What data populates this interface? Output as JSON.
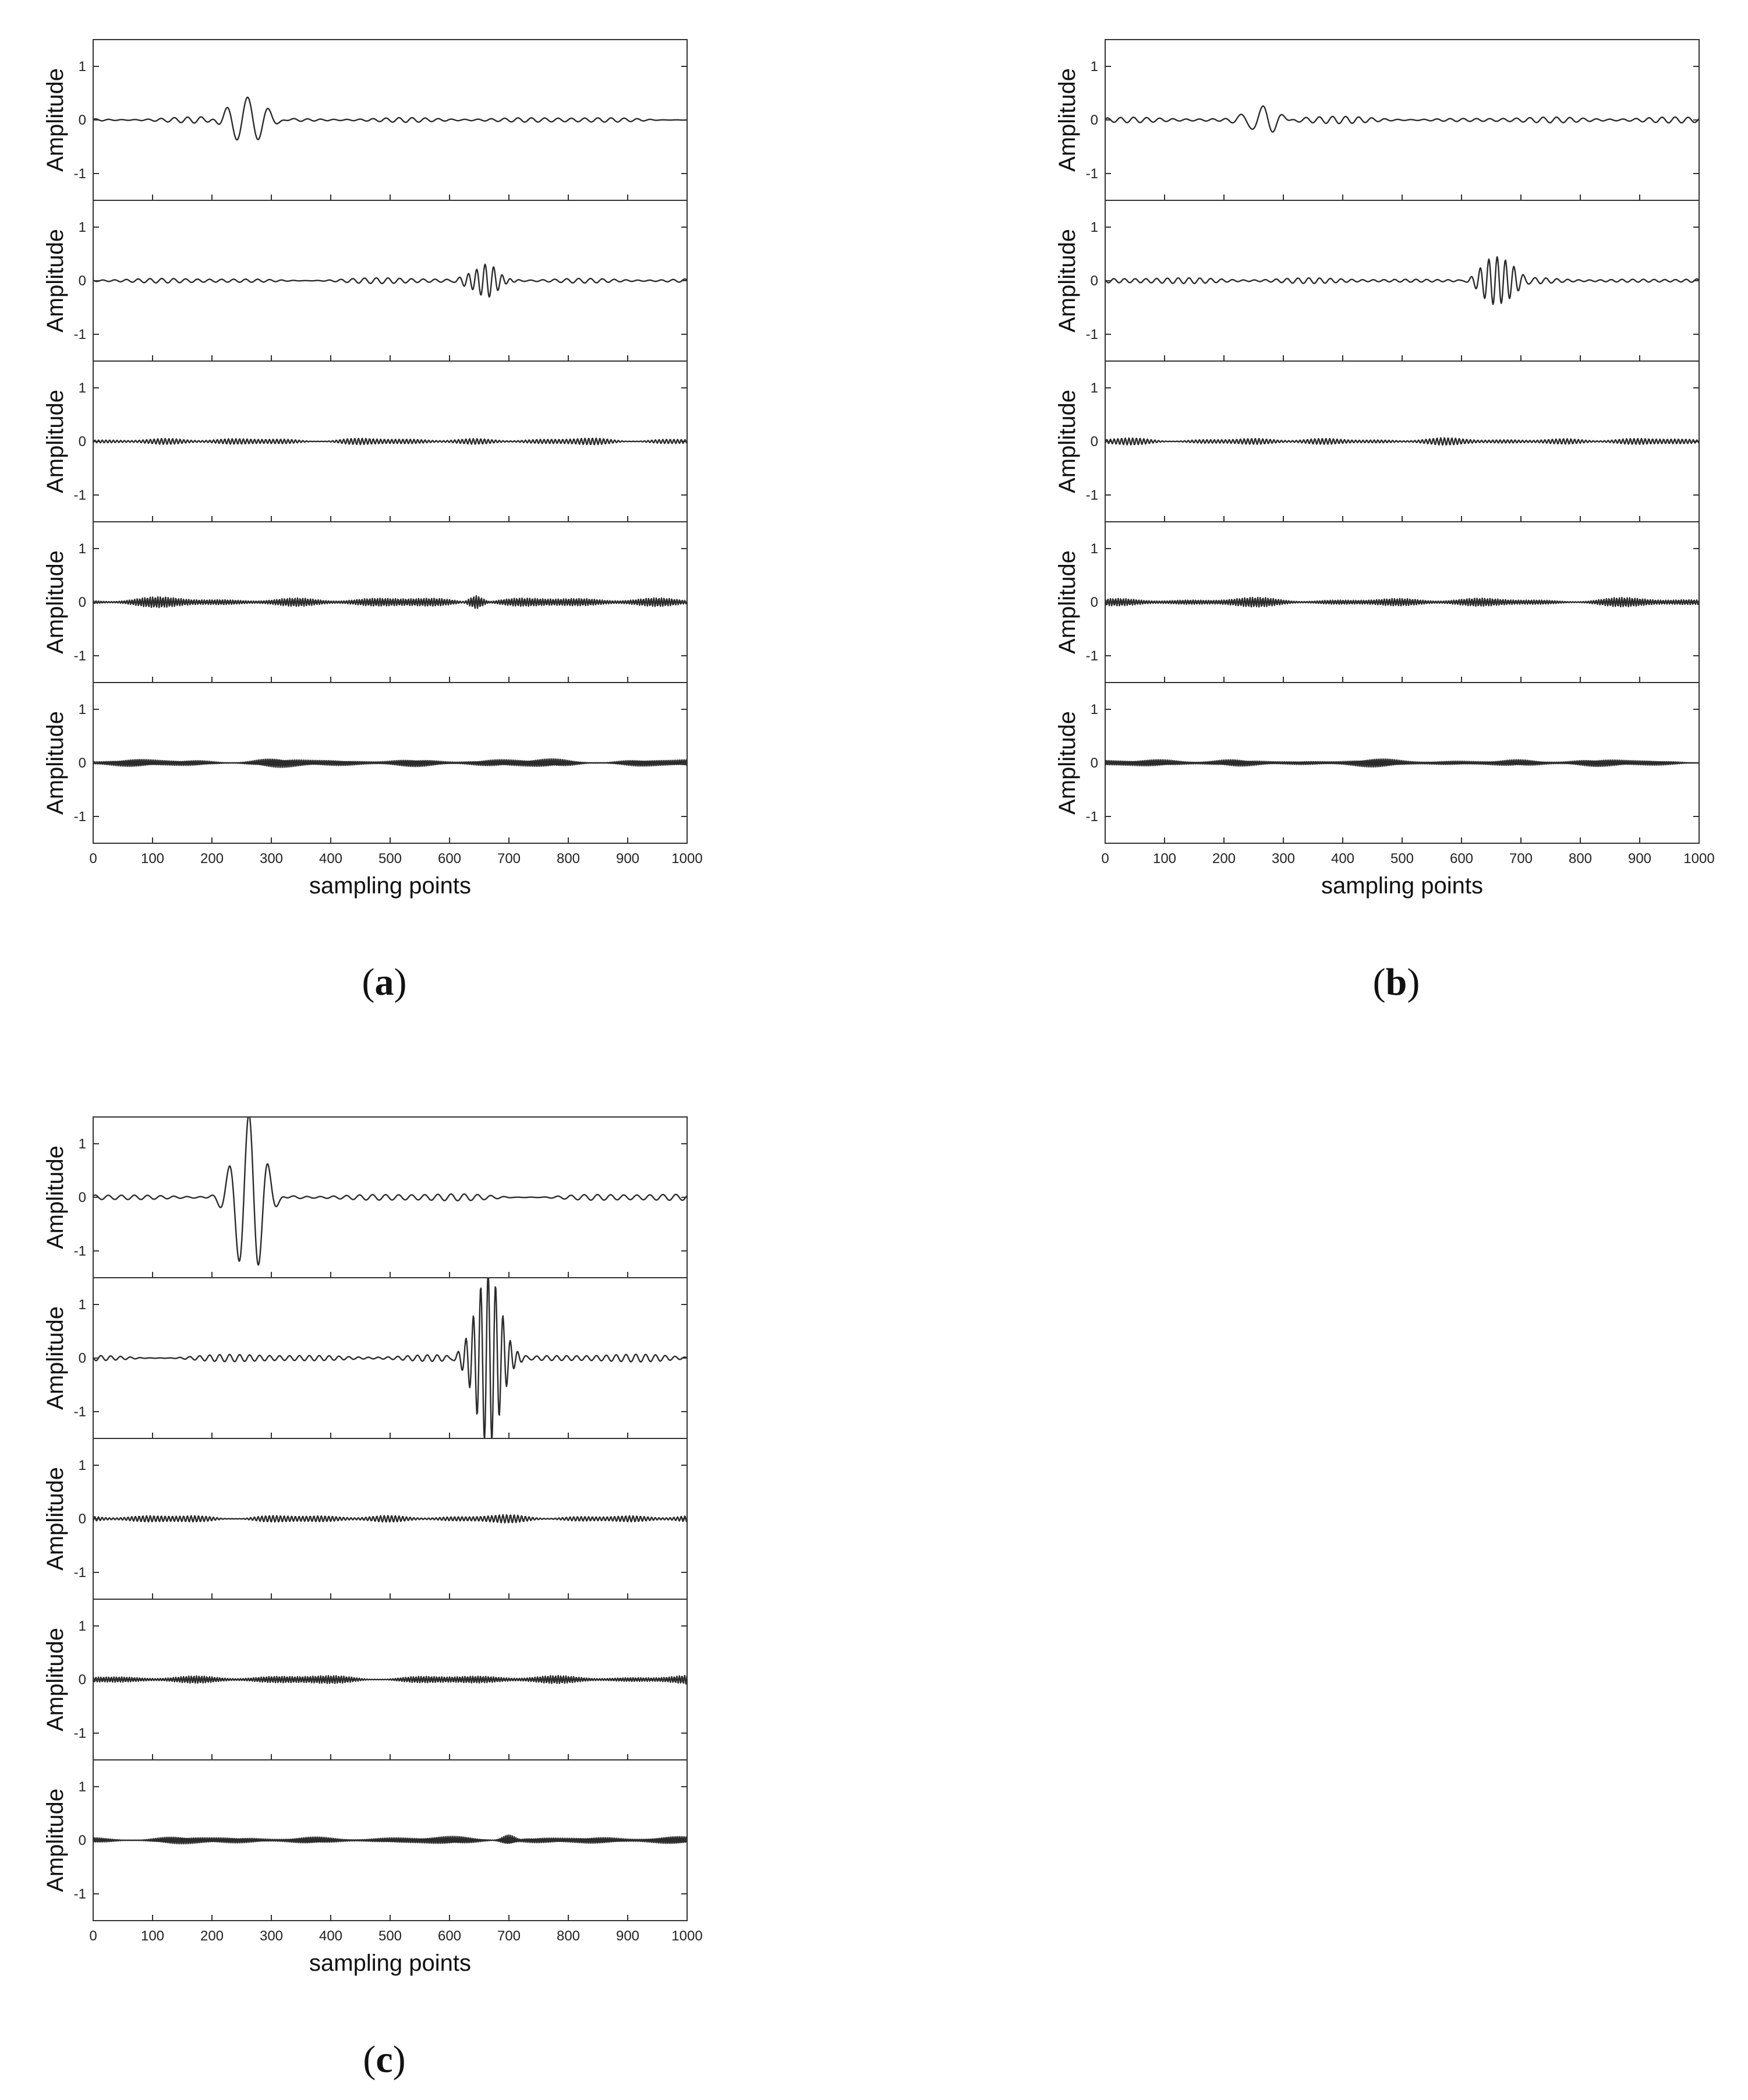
{
  "chart_data": [
    {
      "type": "line",
      "caption_letter": "a",
      "xlabel": "sampling points",
      "ylabel": "Amplitude",
      "xlim": [
        0,
        1000
      ],
      "ylim": [
        -1.5,
        1.5
      ],
      "x_ticks": [
        "0",
        "100",
        "200",
        "300",
        "400",
        "500",
        "600",
        "700",
        "800",
        "900",
        "1000"
      ],
      "y_ticks": [
        "1",
        "0",
        "-1"
      ],
      "panels": [
        {
          "noise_amp": 0.05,
          "noise_freq": 0.045,
          "noise_env": 0.02,
          "bursts": [
            {
              "center": 260,
              "amp": 0.45,
              "width": 38,
              "freq": 0.028
            }
          ]
        },
        {
          "noise_amp": 0.05,
          "noise_freq": 0.05,
          "noise_env": 0.02,
          "bursts": [
            {
              "center": 660,
              "amp": 0.3,
              "width": 30,
              "freq": 0.07
            }
          ]
        },
        {
          "noise_amp": 0.06,
          "noise_freq": 0.16,
          "noise_env": 0.035,
          "bursts": []
        },
        {
          "noise_amp": 0.09,
          "noise_freq": 0.23,
          "noise_env": 0.03,
          "bursts": [
            {
              "center": 645,
              "amp": 0.12,
              "width": 15,
              "freq": 0.23
            }
          ]
        },
        {
          "noise_amp": 0.08,
          "noise_freq": 0.33,
          "noise_env": 0.03,
          "bursts": []
        }
      ]
    },
    {
      "type": "line",
      "caption_letter": "b",
      "xlabel": "sampling points",
      "ylabel": "Amplitude",
      "xlim": [
        0,
        1000
      ],
      "ylim": [
        -1.5,
        1.5
      ],
      "x_ticks": [
        "0",
        "100",
        "200",
        "300",
        "400",
        "500",
        "600",
        "700",
        "800",
        "900",
        "1000"
      ],
      "y_ticks": [
        "1",
        "0",
        "-1"
      ],
      "panels": [
        {
          "noise_amp": 0.06,
          "noise_freq": 0.045,
          "noise_env": 0.02,
          "bursts": [
            {
              "center": 265,
              "amp": 0.26,
              "width": 34,
              "freq": 0.028
            }
          ]
        },
        {
          "noise_amp": 0.06,
          "noise_freq": 0.055,
          "noise_env": 0.02,
          "bursts": [
            {
              "center": 660,
              "amp": 0.5,
              "width": 30,
              "freq": 0.07
            }
          ]
        },
        {
          "noise_amp": 0.06,
          "noise_freq": 0.16,
          "noise_env": 0.035,
          "bursts": []
        },
        {
          "noise_amp": 0.08,
          "noise_freq": 0.23,
          "noise_env": 0.03,
          "bursts": []
        },
        {
          "noise_amp": 0.07,
          "noise_freq": 0.33,
          "noise_env": 0.03,
          "bursts": []
        }
      ]
    },
    {
      "type": "line",
      "caption_letter": "c",
      "xlabel": "sampling points",
      "ylabel": "Amplitude",
      "xlim": [
        0,
        1000
      ],
      "ylim": [
        -1.5,
        1.5
      ],
      "x_ticks": [
        "0",
        "100",
        "200",
        "300",
        "400",
        "500",
        "600",
        "700",
        "800",
        "900",
        "1000"
      ],
      "y_ticks": [
        "1",
        "0",
        "-1"
      ],
      "panels": [
        {
          "noise_amp": 0.07,
          "noise_freq": 0.045,
          "noise_env": 0.02,
          "bursts": [
            {
              "center": 262,
              "amp": 1.6,
              "width": 32,
              "freq": 0.03
            }
          ]
        },
        {
          "noise_amp": 0.07,
          "noise_freq": 0.06,
          "noise_env": 0.02,
          "bursts": [
            {
              "center": 665,
              "amp": 1.6,
              "width": 30,
              "freq": 0.08
            }
          ]
        },
        {
          "noise_amp": 0.07,
          "noise_freq": 0.16,
          "noise_env": 0.035,
          "bursts": []
        },
        {
          "noise_amp": 0.08,
          "noise_freq": 0.23,
          "noise_env": 0.03,
          "bursts": []
        },
        {
          "noise_amp": 0.07,
          "noise_freq": 0.33,
          "noise_env": 0.03,
          "bursts": [
            {
              "center": 700,
              "amp": 0.1,
              "width": 15,
              "freq": 0.33
            }
          ]
        }
      ]
    }
  ]
}
